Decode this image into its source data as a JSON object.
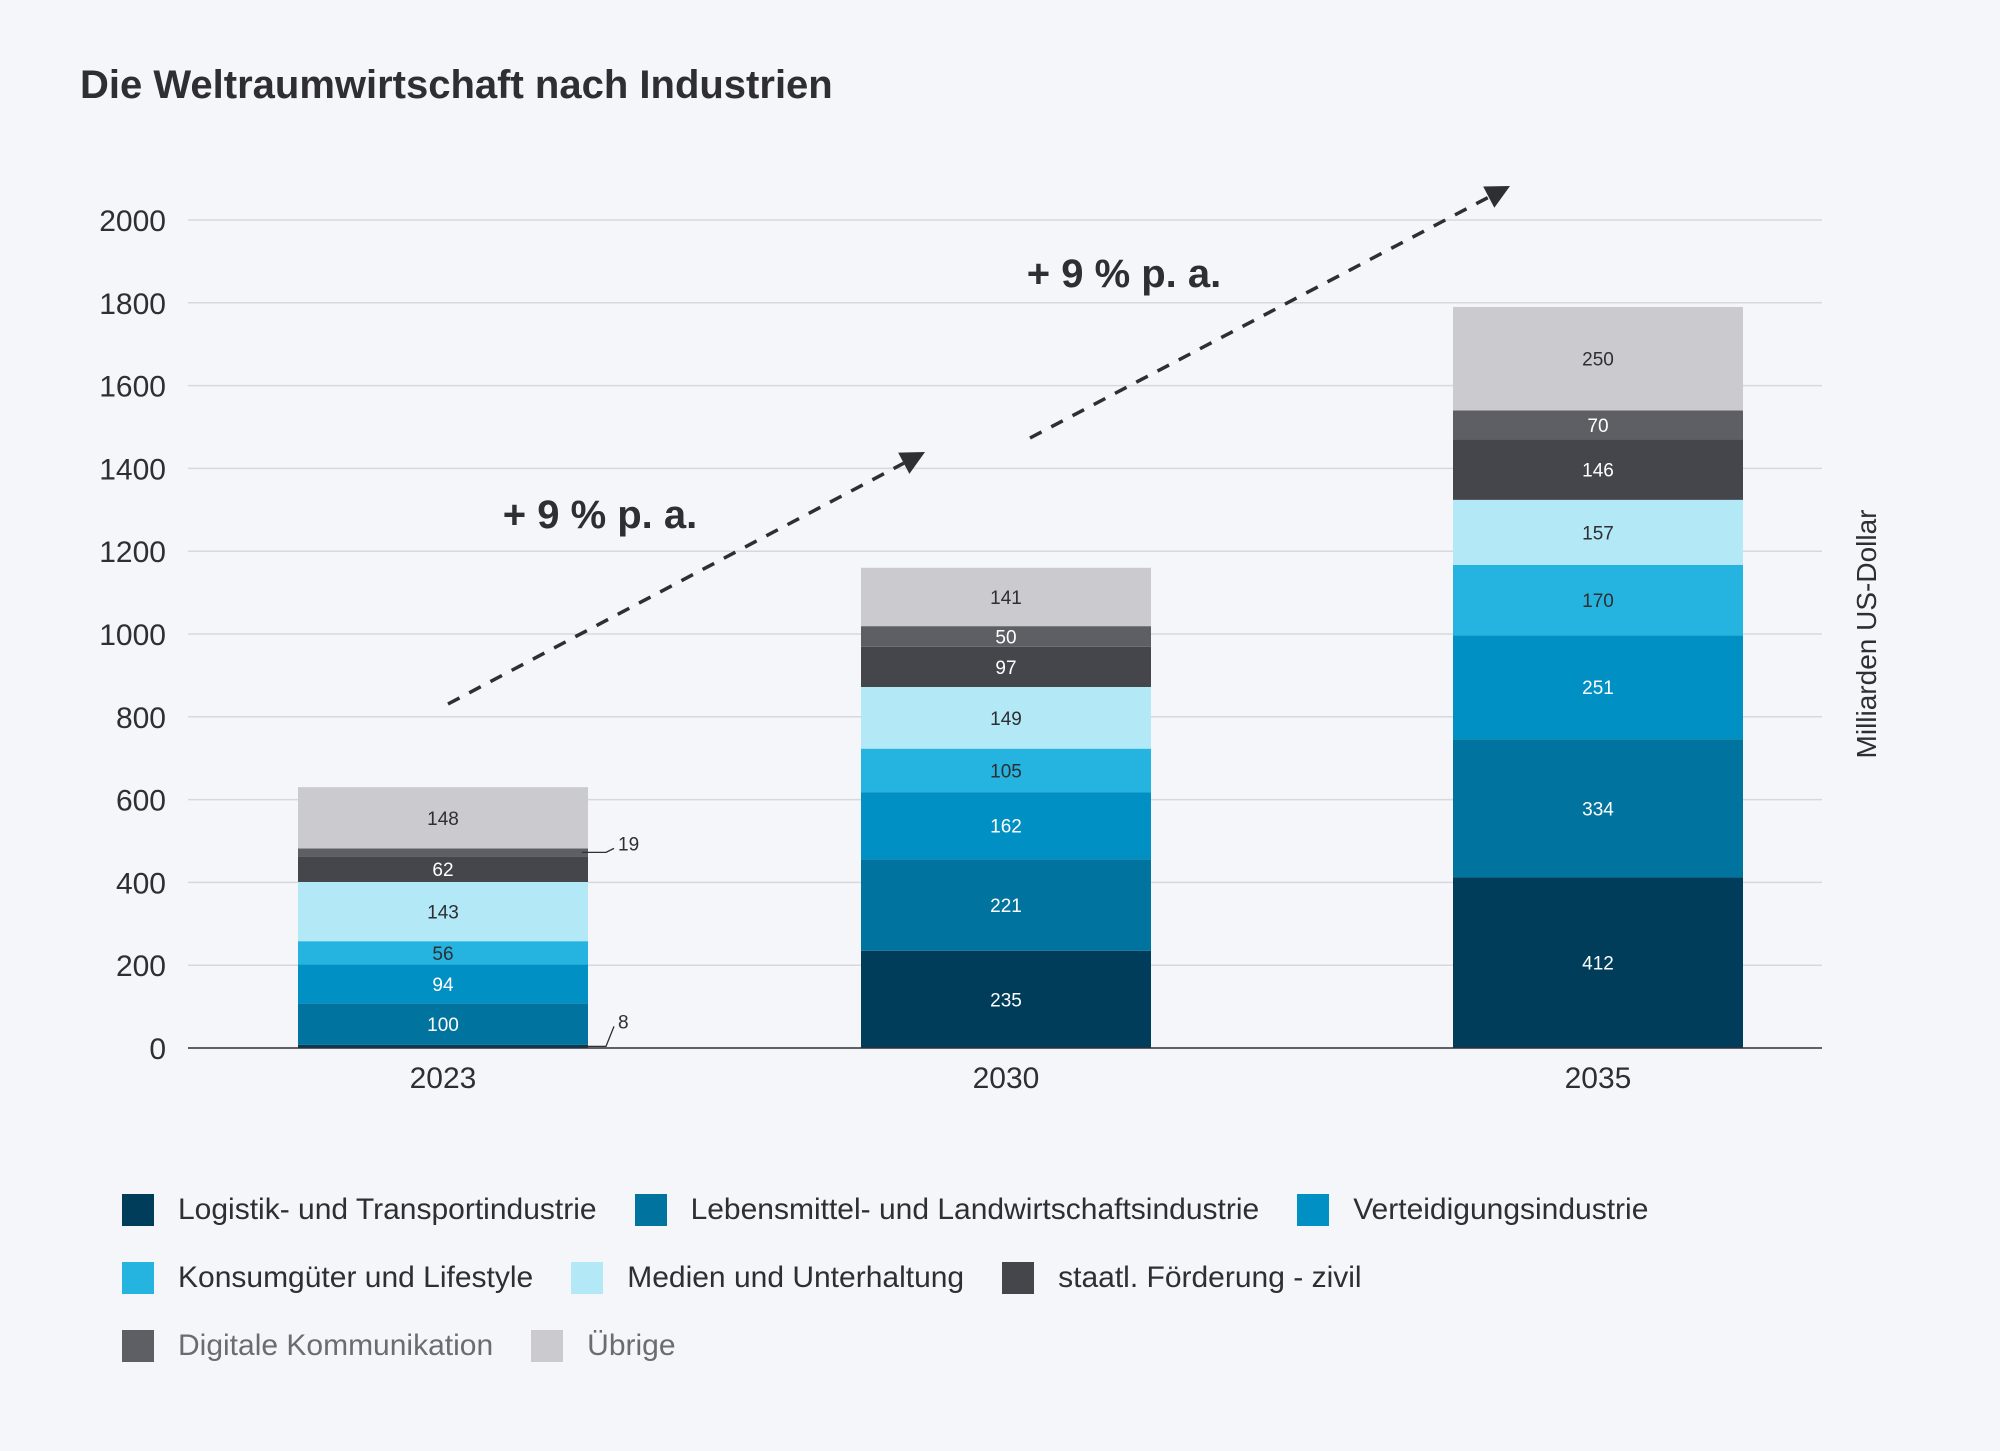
{
  "chart_data": {
    "type": "bar",
    "stacked": true,
    "title": "Die Weltraumwirtschaft nach Industrien",
    "ylabel": "Milliarden US-Dollar",
    "xlabel": "",
    "ylim": [
      0,
      2000
    ],
    "yticks": [
      0,
      200,
      400,
      600,
      800,
      1000,
      1200,
      1400,
      1600,
      1800,
      2000
    ],
    "grid": true,
    "categories": [
      "2023",
      "2030",
      "2035"
    ],
    "series": [
      {
        "name": "Logistik- und Transportindustrie",
        "color": "#003d5b",
        "label_color": "#ffffff",
        "values": [
          8,
          235,
          412
        ]
      },
      {
        "name": "Lebensmittel- und Landwirtschaftsindustrie",
        "color": "#00749e",
        "label_color": "#ffffff",
        "values": [
          100,
          221,
          334
        ]
      },
      {
        "name": "Verteidigungsindustrie",
        "color": "#0090c4",
        "label_color": "#ffffff",
        "values": [
          94,
          162,
          251
        ]
      },
      {
        "name": "Konsumgüter und Lifestyle",
        "color": "#25b4e0",
        "label_color": "#2e2e33",
        "values": [
          56,
          105,
          170
        ]
      },
      {
        "name": "Medien und Unterhaltung",
        "color": "#b3e8f6",
        "label_color": "#2e2e33",
        "values": [
          143,
          149,
          157
        ]
      },
      {
        "name": "staatl. Förderung - zivil",
        "color": "#45464c",
        "label_color": "#ffffff",
        "values": [
          62,
          97,
          146
        ]
      },
      {
        "name": "Digitale Kommunikation",
        "color": "#5e5f65",
        "label_color": "#ffffff",
        "values": [
          19,
          50,
          70
        ]
      },
      {
        "name": "Übrige",
        "color": "#cbcbcf",
        "label_color": "#2e2e33",
        "values": [
          148,
          141,
          250
        ]
      }
    ],
    "annotations": [
      {
        "text": "+ 9 % p. a.",
        "from": "2023",
        "to": "2030"
      },
      {
        "text": "+ 9 % p. a.",
        "from": "2030",
        "to": "2035"
      }
    ],
    "legend_position": "bottom"
  }
}
